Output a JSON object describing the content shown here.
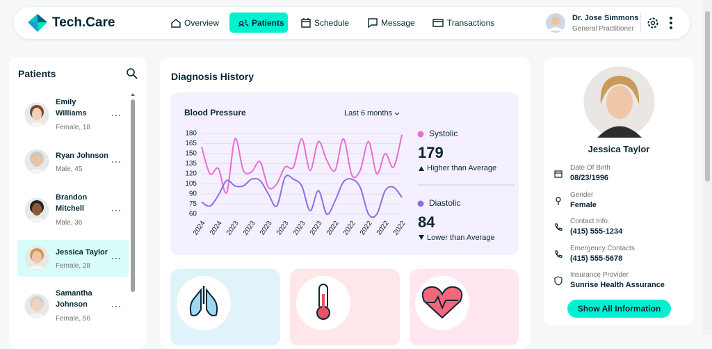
{
  "header": {
    "brand": "Tech.Care",
    "nav": [
      {
        "label": "Overview",
        "active": false
      },
      {
        "label": "Patients",
        "active": true
      },
      {
        "label": "Schedule",
        "active": false
      },
      {
        "label": "Message",
        "active": false
      },
      {
        "label": "Transactions",
        "active": false
      }
    ],
    "user": {
      "name": "Dr. Jose Simmons",
      "role": "General Practitioner"
    }
  },
  "patients": {
    "title": "Patients",
    "list": [
      {
        "name": [
          "Emily",
          "Williams"
        ],
        "info": "Female, 18",
        "selected": false
      },
      {
        "name": [
          "Ryan Johnson"
        ],
        "info": "Male, 45",
        "selected": false
      },
      {
        "name": [
          "Brandon",
          "Mitchell"
        ],
        "info": "Male, 36",
        "selected": false
      },
      {
        "name": [
          "Jessica Taylor"
        ],
        "info": "Female, 28",
        "selected": true
      },
      {
        "name": [
          "Samantha",
          "Johnson"
        ],
        "info": "Female, 56",
        "selected": false
      }
    ]
  },
  "diagnosis": {
    "title": "Diagnosis History"
  },
  "chart_data": {
    "type": "line",
    "title": "Blood Pressure",
    "period": "Last 6 months",
    "categories": [
      "2024",
      null,
      "2024",
      null,
      "2023",
      null,
      "2023",
      null,
      "2023",
      null,
      "2023",
      null,
      "2023",
      null,
      "2023",
      null,
      "2022",
      null,
      "2022",
      null,
      "2022",
      null,
      "2022",
      null,
      "2022"
    ],
    "series": [
      {
        "name": "Systolic",
        "color": "#e66fd2",
        "current": 179,
        "status": "Higher than Average",
        "values": [
          160,
          120,
          128,
          92,
          172,
          125,
          123,
          138,
          100,
          105,
          130,
          130,
          172,
          125,
          168,
          140,
          125,
          172,
          118,
          125,
          168,
          120,
          150,
          130,
          178
        ]
      },
      {
        "name": "Diastolic",
        "color": "#8c6fe6",
        "current": 84,
        "status": "Lower than Average",
        "values": [
          78,
          72,
          88,
          110,
          102,
          102,
          112,
          110,
          90,
          72,
          115,
          112,
          102,
          65,
          95,
          60,
          80,
          108,
          112,
          100,
          60,
          60,
          95,
          100,
          85
        ]
      }
    ],
    "ylim": [
      60,
      180
    ],
    "yticks": [
      60,
      75,
      90,
      105,
      120,
      135,
      150,
      165,
      180
    ],
    "grid": true
  },
  "profile": {
    "name": "Jessica Taylor",
    "fields": [
      {
        "label": "Date Of Birth",
        "value": "08/23/1996"
      },
      {
        "label": "Gender",
        "value": "Female"
      },
      {
        "label": "Contact Info.",
        "value": "(415) 555-1234"
      },
      {
        "label": "Emergency Contacts",
        "value": "(415) 555-5678"
      },
      {
        "label": "Insurance Provider",
        "value": "Sunrise Health Assurance"
      }
    ],
    "button": "Show All Information"
  }
}
